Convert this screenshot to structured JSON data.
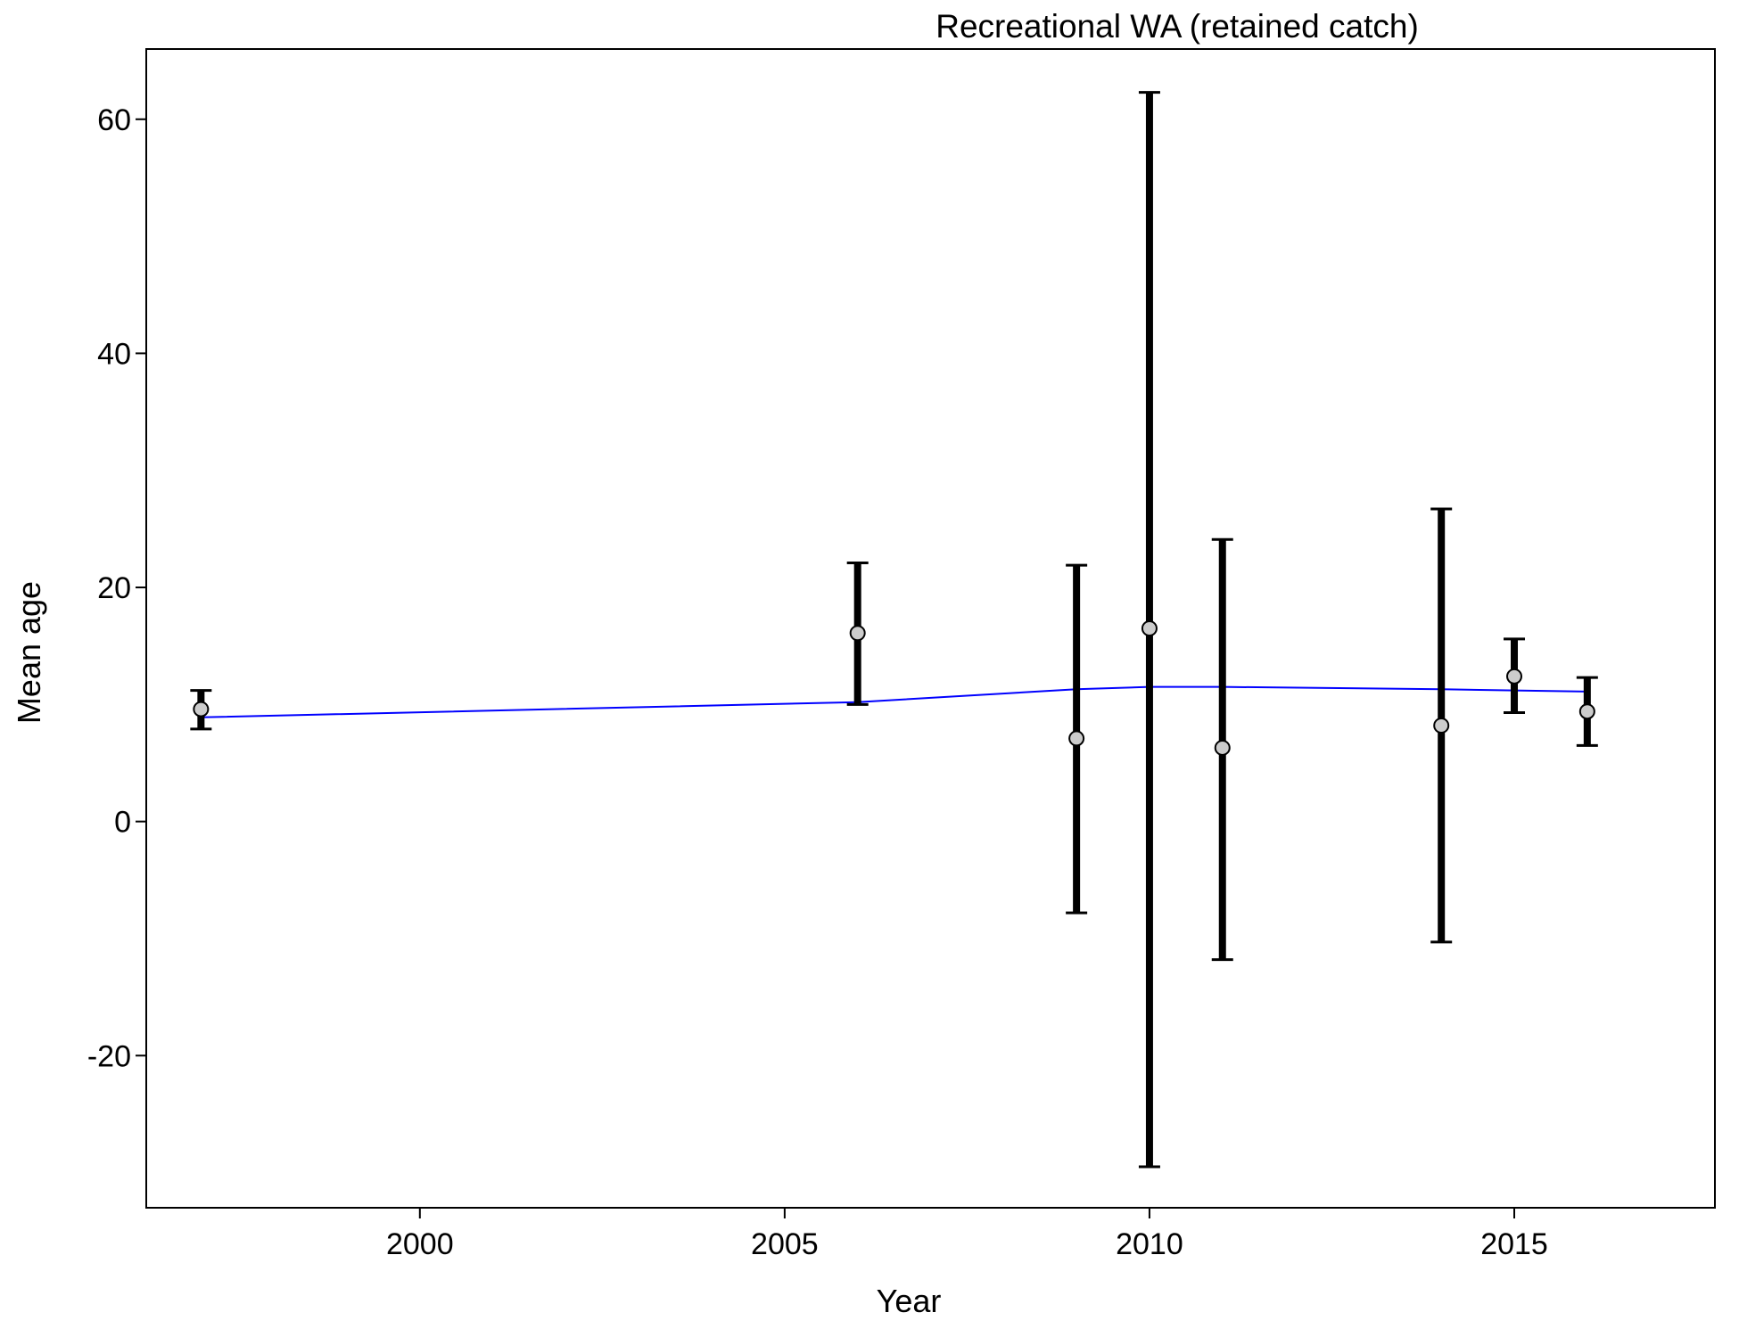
{
  "chart_data": {
    "type": "scatter",
    "title": "Recreational WA (retained catch)",
    "xlabel": "Year",
    "ylabel": "Mean age",
    "xlim": [
      1996.25,
      2017.75
    ],
    "ylim": [
      -33,
      66
    ],
    "x_ticks": [
      2000,
      2005,
      2010,
      2015
    ],
    "y_ticks": [
      -20,
      0,
      20,
      40,
      60
    ],
    "grid": false,
    "colors": {
      "points": "#cccccc",
      "error_bars": "#000000",
      "fit_line": "#0000ff"
    },
    "observed": [
      {
        "x": 1997,
        "y": 9.6,
        "lower": 7.9,
        "upper": 11.2
      },
      {
        "x": 2006,
        "y": 16.1,
        "lower": 10.0,
        "upper": 22.1
      },
      {
        "x": 2009,
        "y": 7.1,
        "lower": -7.8,
        "upper": 21.9
      },
      {
        "x": 2010,
        "y": 16.5,
        "lower": -29.5,
        "upper": 62.3
      },
      {
        "x": 2011,
        "y": 6.3,
        "lower": -11.8,
        "upper": 24.1
      },
      {
        "x": 2014,
        "y": 8.2,
        "lower": -10.3,
        "upper": 26.7
      },
      {
        "x": 2015,
        "y": 12.4,
        "lower": 9.3,
        "upper": 15.6
      },
      {
        "x": 2016,
        "y": 9.4,
        "lower": 6.5,
        "upper": 12.3
      }
    ],
    "expected": {
      "x": [
        1997,
        2006,
        2009,
        2010,
        2011,
        2014,
        2015,
        2016
      ],
      "y": [
        8.9,
        10.2,
        11.3,
        11.5,
        11.5,
        11.3,
        11.2,
        11.1
      ]
    }
  }
}
